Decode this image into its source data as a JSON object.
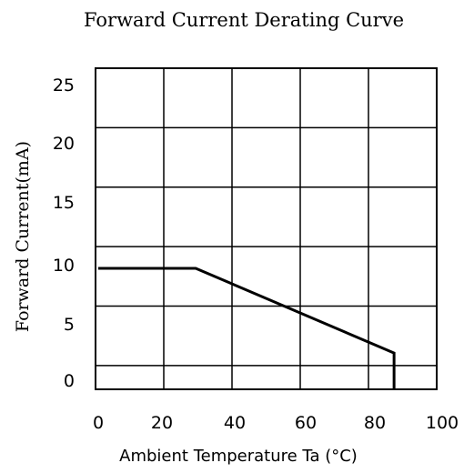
{
  "chart_data": {
    "type": "line",
    "title": "Forward Current Derating Curve",
    "xlabel": "Ambient Temperature Ta (°C)",
    "ylabel": "Forward Current(mA)",
    "xlim": [
      0,
      100
    ],
    "ylim": [
      0,
      25
    ],
    "x_ticks": [
      0,
      20,
      40,
      60,
      80,
      100
    ],
    "y_ticks": [
      0,
      5,
      10,
      15,
      20,
      25
    ],
    "x_tick_labels": [
      "0",
      "20",
      "40",
      "60",
      "80",
      "100"
    ],
    "y_tick_labels": [
      "0",
      "5",
      "10",
      "15",
      "20",
      "25"
    ],
    "grid": true,
    "series": [
      {
        "x": [
          0,
          28,
          85,
          85
        ],
        "y": [
          10,
          10,
          3,
          0
        ],
        "color": "#000000"
      }
    ]
  }
}
